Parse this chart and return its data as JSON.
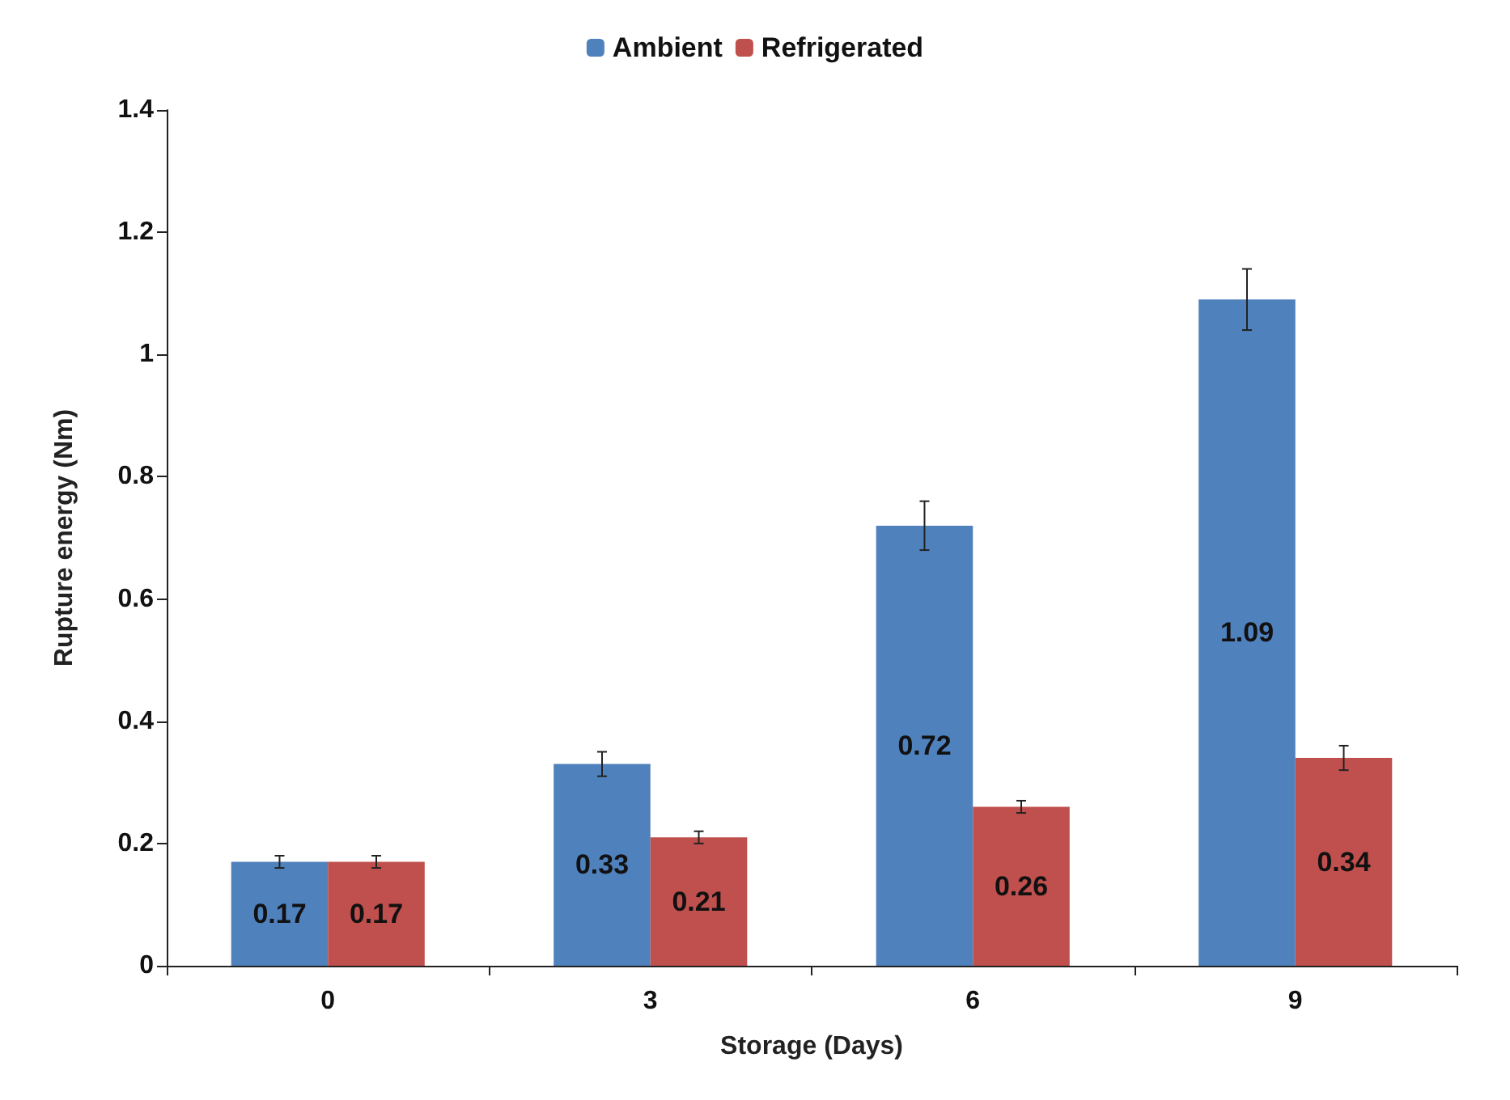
{
  "chart_data": {
    "type": "bar",
    "xlabel": "Storage (Days)",
    "ylabel": "Rupture energy (Nm)",
    "categories": [
      "0",
      "3",
      "6",
      "9"
    ],
    "series": [
      {
        "name": "Ambient",
        "color": "#4f81bd",
        "values": [
          0.17,
          0.33,
          0.72,
          1.09
        ],
        "errors": [
          0.01,
          0.02,
          0.04,
          0.05
        ]
      },
      {
        "name": "Refrigerated",
        "color": "#c0504d",
        "values": [
          0.17,
          0.21,
          0.26,
          0.34
        ],
        "errors": [
          0.01,
          0.01,
          0.01,
          0.02
        ]
      }
    ],
    "ylim": [
      0,
      1.4
    ],
    "yticks": [
      0,
      0.2,
      0.4,
      0.6,
      0.8,
      1,
      1.2,
      1.4
    ],
    "grid": false,
    "legend": "top",
    "data_labels": true
  }
}
